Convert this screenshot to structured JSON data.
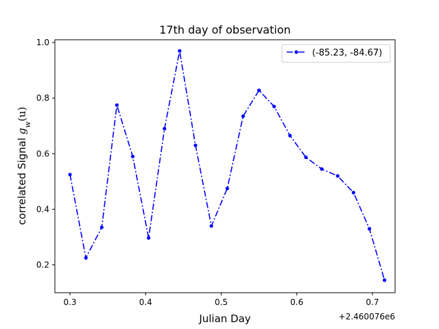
{
  "chart_data": {
    "type": "line",
    "title": "17th day of observation",
    "xlabel": "Julian Day",
    "ylabel": "correlated Signal g_w(u)",
    "ylabel_prefix": "correlated Signal ",
    "ylabel_math_main": "g",
    "ylabel_math_sub": "w",
    "ylabel_math_arg": "(u)",
    "x_offset_label": "+2.460076e6",
    "xlim": [
      0.28,
      0.73
    ],
    "ylim": [
      0.1,
      1.01
    ],
    "xticks": [
      0.3,
      0.4,
      0.5,
      0.6,
      0.7
    ],
    "xtick_labels": [
      "0.3",
      "0.4",
      "0.5",
      "0.6",
      "0.7"
    ],
    "yticks": [
      0.2,
      0.4,
      0.6,
      0.8,
      1.0
    ],
    "ytick_labels": [
      "0.2",
      "0.4",
      "0.6",
      "0.8",
      "1.0"
    ],
    "legend_position": "top-right",
    "grid": false,
    "series": [
      {
        "name": "(-85.23, -84.67)",
        "color": "#0000ff",
        "line_style": "dashdot",
        "marker": "dot",
        "x": [
          0.3,
          0.321,
          0.342,
          0.362,
          0.383,
          0.404,
          0.425,
          0.445,
          0.466,
          0.487,
          0.508,
          0.529,
          0.55,
          0.57,
          0.591,
          0.612,
          0.633,
          0.654,
          0.675,
          0.696,
          0.716
        ],
        "y": [
          0.525,
          0.225,
          0.335,
          0.775,
          0.59,
          0.297,
          0.69,
          0.97,
          0.63,
          0.34,
          0.475,
          0.735,
          0.828,
          0.77,
          0.665,
          0.587,
          0.545,
          0.52,
          0.46,
          0.33,
          0.145
        ]
      }
    ]
  }
}
